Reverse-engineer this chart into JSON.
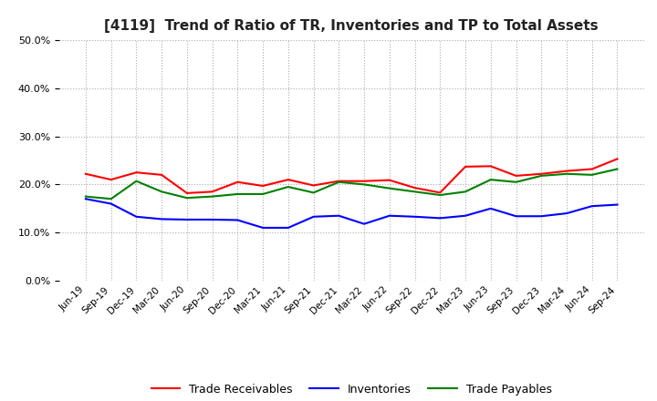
{
  "title": "[4119]  Trend of Ratio of TR, Inventories and TP to Total Assets",
  "labels": [
    "Jun-19",
    "Sep-19",
    "Dec-19",
    "Mar-20",
    "Jun-20",
    "Sep-20",
    "Dec-20",
    "Mar-21",
    "Jun-21",
    "Sep-21",
    "Dec-21",
    "Mar-22",
    "Jun-22",
    "Sep-22",
    "Dec-22",
    "Mar-23",
    "Jun-23",
    "Sep-23",
    "Dec-23",
    "Mar-24",
    "Jun-24",
    "Sep-24"
  ],
  "trade_receivables": [
    0.222,
    0.21,
    0.225,
    0.22,
    0.182,
    0.185,
    0.205,
    0.197,
    0.21,
    0.198,
    0.207,
    0.207,
    0.209,
    0.193,
    0.183,
    0.237,
    0.238,
    0.218,
    0.222,
    0.228,
    0.232,
    0.253
  ],
  "inventories": [
    0.17,
    0.16,
    0.133,
    0.128,
    0.127,
    0.127,
    0.126,
    0.11,
    0.11,
    0.133,
    0.135,
    0.118,
    0.135,
    0.133,
    0.13,
    0.135,
    0.15,
    0.134,
    0.134,
    0.14,
    0.155,
    0.158
  ],
  "trade_payables": [
    0.175,
    0.17,
    0.207,
    0.185,
    0.172,
    0.175,
    0.18,
    0.18,
    0.195,
    0.183,
    0.205,
    0.2,
    0.192,
    0.185,
    0.178,
    0.185,
    0.21,
    0.205,
    0.218,
    0.222,
    0.22,
    0.232
  ],
  "tr_color": "#ff0000",
  "inv_color": "#0000ff",
  "tp_color": "#008000",
  "ylim": [
    0.0,
    0.5
  ],
  "yticks": [
    0.0,
    0.1,
    0.2,
    0.3,
    0.4,
    0.5
  ],
  "legend_labels": [
    "Trade Receivables",
    "Inventories",
    "Trade Payables"
  ],
  "background_color": "#ffffff",
  "grid_color": "#aaaaaa"
}
